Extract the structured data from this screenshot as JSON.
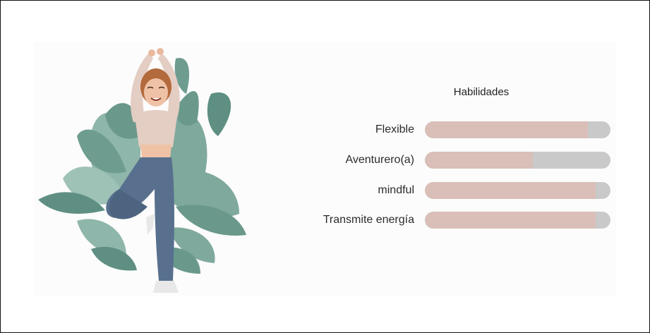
{
  "skills_panel": {
    "title": "Habilidades",
    "skills": [
      {
        "label": "Flexible",
        "level": 0.88
      },
      {
        "label": "Aventurero(a)",
        "level": 0.58
      },
      {
        "label": "mindful",
        "level": 0.92
      },
      {
        "label": "Transmite energía",
        "level": 0.92
      }
    ]
  },
  "colors": {
    "bar_fill": "#d9bfb8",
    "bar_track": "#c9c9c9",
    "leaf": "#7fa99c",
    "leaf_dark": "#5e8f82",
    "pants": "#58708e",
    "sweater": "#e4cdc3"
  },
  "illustration": {
    "icon": "yoga-woman-tree-pose-illustration"
  }
}
